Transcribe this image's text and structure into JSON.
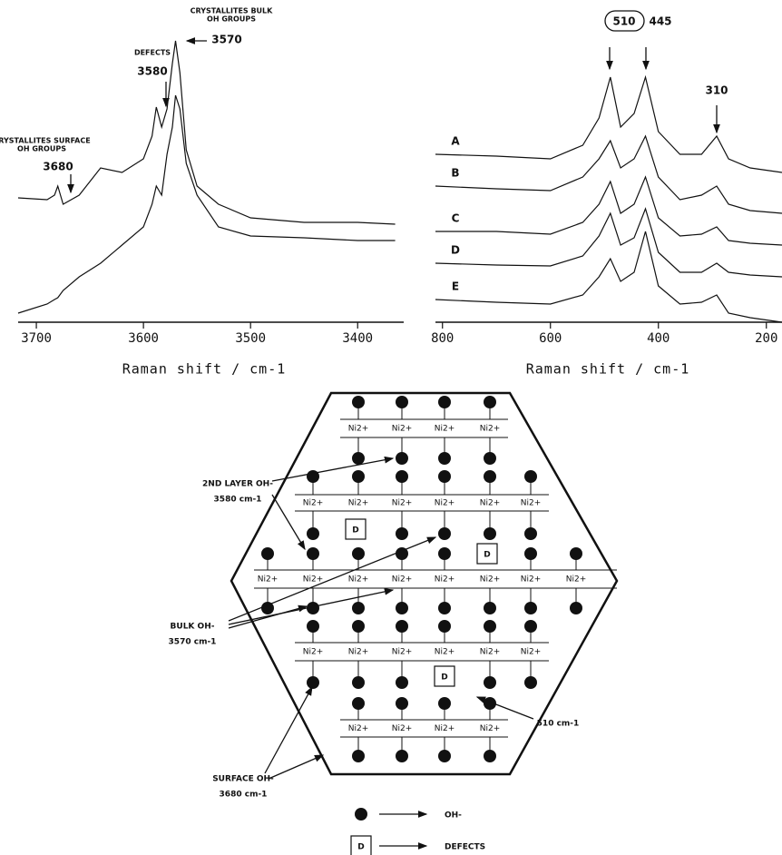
{
  "chart_data": [
    {
      "type": "line",
      "x": [
        3717,
        3690,
        3683,
        3680,
        3675,
        3660,
        3640,
        3620,
        3600,
        3592,
        3588,
        3583,
        3578,
        3573,
        3570,
        3566,
        3560,
        3550,
        3530,
        3500,
        3450,
        3400,
        3365
      ],
      "xlim": [
        3717,
        3357
      ],
      "xticks": [
        3700,
        3600,
        3500,
        3400
      ],
      "ylim": [
        0,
        315
      ],
      "x_label": "Raman shift / cm-1",
      "color": "#111111",
      "series": [
        {
          "values": [
            137,
            135,
            140,
            150,
            130,
            140,
            170,
            165,
            180,
            205,
            237,
            215,
            235,
            285,
            310,
            275,
            190,
            150,
            130,
            115,
            110,
            110,
            108
          ]
        },
        {
          "values": [
            10,
            20,
            25,
            27,
            35,
            50,
            65,
            85,
            105,
            130,
            150,
            140,
            185,
            215,
            250,
            235,
            175,
            140,
            105,
            95,
            93,
            90,
            90
          ]
        }
      ],
      "annotations": [
        "CRYSTALLITES SURFACE",
        "OH GROUPS",
        "3680",
        "DEFECTS",
        "3580",
        "CRYSTALLITES BULK",
        "OH GROUPS",
        "3570"
      ]
    },
    {
      "type": "line",
      "x": [
        813,
        700,
        600,
        540,
        510,
        489,
        470,
        445,
        424,
        400,
        360,
        320,
        292,
        270,
        230,
        171
      ],
      "xlim": [
        813,
        171
      ],
      "xticks": [
        800,
        600,
        400,
        200
      ],
      "ylim": [
        0,
        315
      ],
      "x_label": "Raman shift / cm-1",
      "color": "#111111",
      "series": [
        {
          "name": "A",
          "values": [
            185,
            183,
            180,
            195,
            225,
            270,
            215,
            230,
            270,
            210,
            185,
            185,
            205,
            180,
            170,
            165
          ]
        },
        {
          "name": "B",
          "values": [
            150,
            147,
            145,
            160,
            180,
            200,
            170,
            180,
            205,
            160,
            135,
            140,
            150,
            130,
            123,
            120
          ]
        },
        {
          "name": "C",
          "values": [
            100,
            100,
            97,
            110,
            130,
            155,
            120,
            130,
            160,
            115,
            95,
            97,
            105,
            90,
            87,
            85
          ]
        },
        {
          "name": "D",
          "values": [
            65,
            63,
            62,
            73,
            95,
            120,
            85,
            93,
            125,
            77,
            55,
            55,
            65,
            55,
            52,
            50
          ]
        },
        {
          "name": "E",
          "values": [
            25,
            22,
            20,
            30,
            50,
            70,
            45,
            55,
            100,
            40,
            20,
            22,
            30,
            10,
            5,
            0
          ]
        }
      ],
      "annotations": [
        "510",
        "445",
        "310"
      ]
    }
  ],
  "diagram": {
    "layers": [
      {
        "ni_labels": [
          "Ni2+",
          "Ni2+",
          "Ni2+",
          "Ni2+"
        ]
      },
      {
        "ni_labels": [
          "Ni2+",
          "Ni2+",
          "Ni2+",
          "Ni2+",
          "Ni2+",
          "Ni2+"
        ]
      },
      {
        "ni_labels": [
          "Ni2+",
          "Ni2+",
          "Ni2+",
          "Ni2+",
          "Ni2+",
          "Ni2+",
          "Ni2+",
          "Ni2+"
        ]
      },
      {
        "ni_labels": [
          "Ni2+",
          "Ni2+",
          "Ni2+",
          "Ni2+",
          "Ni2+",
          "Ni2+"
        ]
      },
      {
        "ni_labels": [
          "Ni2+",
          "Ni2+",
          "Ni2+",
          "Ni2+"
        ]
      }
    ],
    "defects": [
      "D",
      "D",
      "D"
    ],
    "labels": {
      "second_layer": "2ND LAYER OH-",
      "second_layer_freq": "3580 cm-1",
      "bulk": "BULK OH-",
      "bulk_freq": "3570 cm-1",
      "surface": "SURFACE OH-",
      "surface_freq": "3680 cm-1",
      "defect_freq": "510 cm-1"
    },
    "legend": {
      "dot_label": "OH-",
      "defect_symbol": "D",
      "defect_label": "DEFECTS"
    }
  }
}
